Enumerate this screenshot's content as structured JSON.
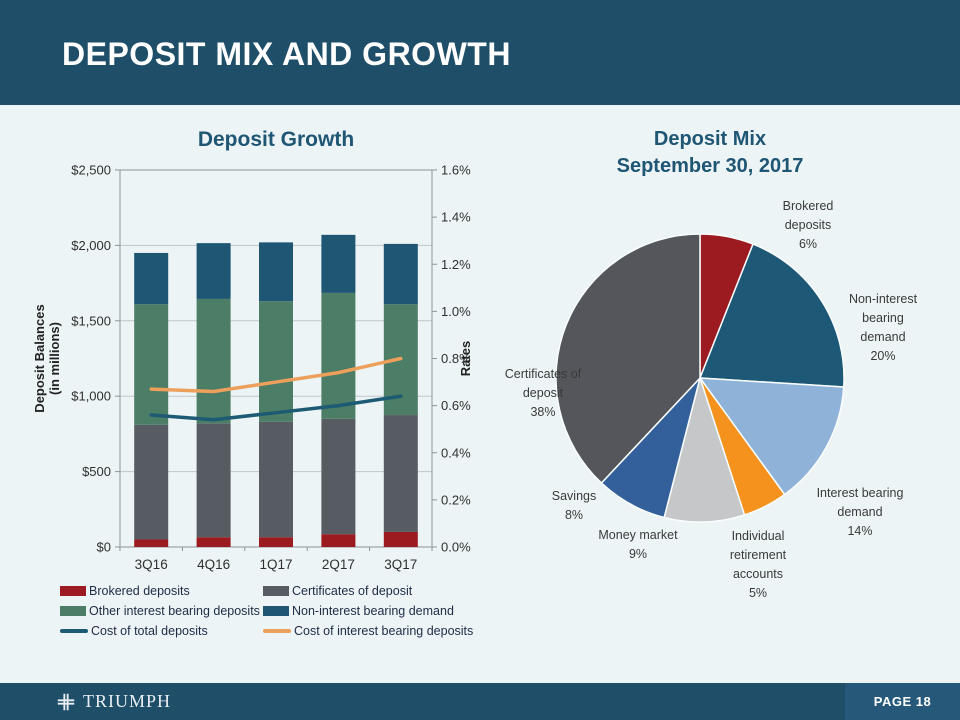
{
  "slide": {
    "title": "DEPOSIT MIX AND GROWTH",
    "footer": {
      "brand": "TRIUMPH",
      "page_label": "PAGE 18"
    }
  },
  "colors": {
    "header_bar": "#1F4E69",
    "background": "#ECF4F6",
    "page_badge": "#26587A",
    "chart_title_text": "#1F5674"
  },
  "chart_data": [
    {
      "type": "bar",
      "title": "Deposit Growth",
      "categories": [
        "3Q16",
        "4Q16",
        "1Q17",
        "2Q17",
        "3Q17"
      ],
      "series": [
        {
          "name": "Brokered deposits",
          "kind": "bar",
          "axis": "left",
          "color": "#9C1B20",
          "values": [
            50,
            65,
            65,
            85,
            100
          ]
        },
        {
          "name": "Certificates of deposit",
          "kind": "bar",
          "axis": "left",
          "color": "#575C62",
          "values": [
            760,
            755,
            765,
            765,
            775
          ]
        },
        {
          "name": "Other interest bearing deposits",
          "kind": "bar",
          "axis": "left",
          "color": "#4C7D66",
          "values": [
            800,
            825,
            800,
            835,
            735
          ]
        },
        {
          "name": "Non-interest bearing demand",
          "kind": "bar",
          "axis": "left",
          "color": "#1F5674",
          "values": [
            340,
            370,
            390,
            385,
            400
          ]
        },
        {
          "name": "Cost of total deposits",
          "kind": "line",
          "axis": "right",
          "color": "#1D5A74",
          "values": [
            0.56,
            0.54,
            0.57,
            0.6,
            0.64
          ]
        },
        {
          "name": "Cost of interest bearing deposits",
          "kind": "line",
          "axis": "right",
          "color": "#EDA05B",
          "values": [
            0.67,
            0.66,
            0.7,
            0.74,
            0.8
          ]
        }
      ],
      "left_axis": {
        "title_lines": [
          "Deposit Balances",
          "(in millions)"
        ],
        "min": 0,
        "max": 2500,
        "step": 500,
        "tick_labels": [
          "$0",
          "$500",
          "$1,000",
          "$1,500",
          "$2,000",
          "$2,500"
        ]
      },
      "right_axis": {
        "title": "Rates",
        "min": 0,
        "max": 1.6,
        "step": 0.2,
        "tick_labels": [
          "0.0%",
          "0.2%",
          "0.4%",
          "0.6%",
          "0.8%",
          "1.0%",
          "1.2%",
          "1.4%",
          "1.6%"
        ]
      },
      "legend_position": "bottom",
      "grid": true,
      "stacked": true
    },
    {
      "type": "pie",
      "title": "Deposit Mix",
      "subtitle": "September 30, 2017",
      "start_angle_deg": 0,
      "slices": [
        {
          "label": "Brokered deposits",
          "label_lines": [
            "Brokered",
            "deposits"
          ],
          "pct_label": "6%",
          "value": 6,
          "color": "#9C1B20"
        },
        {
          "label": "Non-interest bearing demand",
          "label_lines": [
            "Non-interest",
            "bearing",
            "demand"
          ],
          "pct_label": "20%",
          "value": 20,
          "color": "#1E5877"
        },
        {
          "label": "Interest bearing demand",
          "label_lines": [
            "Interest bearing",
            "demand"
          ],
          "pct_label": "14%",
          "value": 14,
          "color": "#8FB2D8"
        },
        {
          "label": "Individual retirement accounts",
          "label_lines": [
            "Individual",
            "retirement",
            "accounts"
          ],
          "pct_label": "5%",
          "value": 5,
          "color": "#F5921E"
        },
        {
          "label": "Money market",
          "label_lines": [
            "Money market"
          ],
          "pct_label": "9%",
          "value": 9,
          "color": "#C6C7C8"
        },
        {
          "label": "Savings",
          "label_lines": [
            "Savings"
          ],
          "pct_label": "8%",
          "value": 8,
          "color": "#33609B"
        },
        {
          "label": "Certificates of deposit",
          "label_lines": [
            "Certificates of",
            "deposit"
          ],
          "pct_label": "38%",
          "value": 38,
          "color": "#54565B"
        }
      ]
    }
  ]
}
